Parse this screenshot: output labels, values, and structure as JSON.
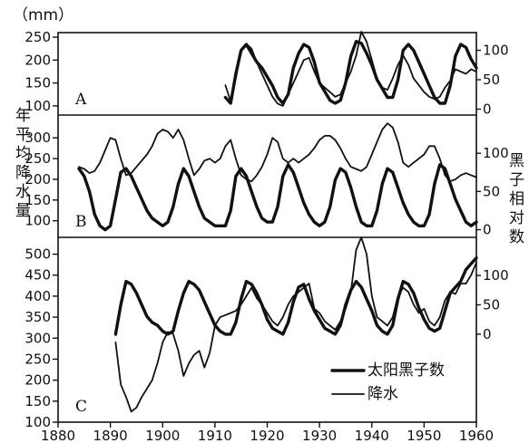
{
  "unit_label": "（mm）",
  "left_axis_title": [
    "年",
    "平",
    "均",
    "降",
    "水",
    "量"
  ],
  "right_axis_title": [
    "黑",
    "子",
    "相",
    "对",
    "数"
  ],
  "legend": {
    "sunspot": "太阳黑子数",
    "precip": "降水"
  },
  "chart_data": [
    {
      "panel": "A",
      "type": "line",
      "xlim": [
        1880,
        1960
      ],
      "ylim_left": [
        80,
        260
      ],
      "ylim_right": [
        -10,
        130
      ],
      "left_ticks": [
        100,
        150,
        200,
        250
      ],
      "right_ticks": [
        0,
        50,
        100
      ],
      "series": [
        {
          "role": "precip",
          "axis": "left",
          "x": [
            1912,
            1913,
            1914,
            1915,
            1916,
            1917,
            1918,
            1919,
            1920,
            1921,
            1922,
            1923,
            1924,
            1925,
            1926,
            1927,
            1928,
            1929,
            1930,
            1931,
            1932,
            1933,
            1934,
            1935,
            1936,
            1937,
            1938,
            1939,
            1940,
            1941,
            1942,
            1943,
            1944,
            1945,
            1946,
            1947,
            1948,
            1949,
            1950,
            1951,
            1952,
            1953,
            1954,
            1955,
            1956,
            1957,
            1958,
            1959,
            1960
          ],
          "y": [
            145,
            110,
            160,
            220,
            235,
            225,
            195,
            170,
            145,
            120,
            105,
            100,
            125,
            150,
            175,
            200,
            205,
            175,
            150,
            140,
            130,
            120,
            125,
            150,
            175,
            210,
            262,
            240,
            200,
            160,
            140,
            135,
            160,
            190,
            210,
            190,
            160,
            145,
            130,
            120,
            115,
            120,
            140,
            155,
            180,
            175,
            170,
            180,
            175
          ]
        },
        {
          "role": "sunspot",
          "axis": "right",
          "x": [
            1912,
            1913,
            1914,
            1915,
            1916,
            1917,
            1918,
            1919,
            1920,
            1921,
            1922,
            1923,
            1924,
            1925,
            1926,
            1927,
            1928,
            1929,
            1930,
            1931,
            1932,
            1933,
            1934,
            1935,
            1936,
            1937,
            1938,
            1939,
            1940,
            1941,
            1942,
            1943,
            1944,
            1945,
            1946,
            1947,
            1948,
            1949,
            1950,
            1951,
            1952,
            1953,
            1954,
            1955,
            1956,
            1957,
            1958,
            1959,
            1960
          ],
          "y": [
            20,
            10,
            60,
            100,
            110,
            95,
            80,
            70,
            55,
            40,
            20,
            10,
            25,
            70,
            95,
            110,
            105,
            80,
            45,
            30,
            15,
            10,
            15,
            45,
            90,
            115,
            112,
            95,
            75,
            50,
            35,
            20,
            20,
            50,
            100,
            110,
            100,
            80,
            60,
            40,
            20,
            10,
            10,
            40,
            90,
            110,
            105,
            85,
            70
          ]
        }
      ]
    },
    {
      "panel": "B",
      "type": "line",
      "xlim": [
        1880,
        1960
      ],
      "ylim_left": [
        60,
        355
      ],
      "ylim_right": [
        -10,
        150
      ],
      "left_ticks": [
        100,
        150,
        200,
        250,
        300
      ],
      "right_ticks": [
        0,
        50,
        100
      ],
      "series": [
        {
          "role": "precip",
          "axis": "left",
          "x": [
            1884,
            1885,
            1886,
            1887,
            1888,
            1889,
            1890,
            1891,
            1892,
            1893,
            1894,
            1895,
            1896,
            1897,
            1898,
            1899,
            1900,
            1901,
            1902,
            1903,
            1904,
            1905,
            1906,
            1907,
            1908,
            1909,
            1910,
            1911,
            1912,
            1913,
            1914,
            1915,
            1916,
            1917,
            1918,
            1919,
            1920,
            1921,
            1922,
            1923,
            1924,
            1925,
            1926,
            1927,
            1928,
            1929,
            1930,
            1931,
            1932,
            1933,
            1934,
            1935,
            1936,
            1937,
            1938,
            1939,
            1940,
            1941,
            1942,
            1943,
            1944,
            1945,
            1946,
            1947,
            1948,
            1949,
            1950,
            1951,
            1952,
            1953,
            1954,
            1955,
            1956,
            1957,
            1958,
            1959,
            1960
          ],
          "y": [
            230,
            225,
            215,
            220,
            240,
            270,
            300,
            295,
            250,
            210,
            215,
            230,
            245,
            260,
            280,
            310,
            320,
            315,
            300,
            320,
            295,
            250,
            210,
            225,
            245,
            250,
            240,
            250,
            280,
            295,
            250,
            210,
            200,
            195,
            210,
            230,
            260,
            300,
            290,
            250,
            240,
            250,
            240,
            250,
            260,
            275,
            295,
            305,
            305,
            295,
            275,
            250,
            230,
            225,
            220,
            230,
            260,
            290,
            320,
            335,
            325,
            290,
            240,
            230,
            240,
            250,
            260,
            280,
            280,
            250,
            210,
            195,
            200,
            210,
            215,
            210,
            205
          ]
        },
        {
          "role": "sunspot",
          "axis": "right",
          "x": [
            1884,
            1885,
            1886,
            1887,
            1888,
            1889,
            1890,
            1891,
            1892,
            1893,
            1894,
            1895,
            1896,
            1897,
            1898,
            1899,
            1900,
            1901,
            1902,
            1903,
            1904,
            1905,
            1906,
            1907,
            1908,
            1909,
            1910,
            1911,
            1912,
            1913,
            1914,
            1915,
            1916,
            1917,
            1918,
            1919,
            1920,
            1921,
            1922,
            1923,
            1924,
            1925,
            1926,
            1927,
            1928,
            1929,
            1930,
            1931,
            1932,
            1933,
            1934,
            1935,
            1936,
            1937,
            1938,
            1939,
            1940,
            1941,
            1942,
            1943,
            1944,
            1945,
            1946,
            1947,
            1948,
            1949,
            1950,
            1951,
            1952,
            1953,
            1954,
            1955,
            1956,
            1957,
            1958,
            1959,
            1960
          ],
          "y": [
            80,
            70,
            50,
            20,
            5,
            0,
            5,
            40,
            75,
            80,
            70,
            55,
            40,
            25,
            15,
            10,
            5,
            10,
            30,
            60,
            80,
            70,
            50,
            30,
            15,
            10,
            5,
            5,
            5,
            25,
            70,
            80,
            70,
            50,
            30,
            15,
            10,
            10,
            30,
            70,
            85,
            75,
            55,
            35,
            20,
            10,
            5,
            10,
            30,
            65,
            80,
            75,
            55,
            30,
            10,
            5,
            5,
            25,
            60,
            80,
            75,
            55,
            35,
            20,
            10,
            5,
            5,
            20,
            60,
            85,
            80,
            60,
            40,
            25,
            10,
            5,
            10
          ]
        }
      ]
    },
    {
      "panel": "C",
      "type": "line",
      "xlim": [
        1880,
        1960
      ],
      "ylim_left": [
        100,
        540
      ],
      "ylim_right": [
        -150,
        165
      ],
      "left_ticks": [
        100,
        150,
        200,
        250,
        300,
        350,
        400,
        450,
        500
      ],
      "right_ticks": [
        0,
        50,
        100
      ],
      "series": [
        {
          "role": "precip",
          "axis": "left",
          "x": [
            1891,
            1892,
            1893,
            1894,
            1895,
            1896,
            1897,
            1898,
            1899,
            1900,
            1901,
            1902,
            1903,
            1904,
            1905,
            1906,
            1907,
            1908,
            1909,
            1910,
            1911,
            1912,
            1913,
            1914,
            1915,
            1916,
            1917,
            1918,
            1919,
            1920,
            1921,
            1922,
            1923,
            1924,
            1925,
            1926,
            1927,
            1928,
            1929,
            1930,
            1931,
            1932,
            1933,
            1934,
            1935,
            1936,
            1937,
            1938,
            1939,
            1940,
            1941,
            1942,
            1943,
            1944,
            1945,
            1946,
            1947,
            1948,
            1949,
            1950,
            1951,
            1952,
            1953,
            1954,
            1955,
            1956,
            1957,
            1958,
            1959,
            1960
          ],
          "y": [
            290,
            190,
            160,
            125,
            135,
            160,
            180,
            200,
            240,
            290,
            315,
            310,
            270,
            210,
            240,
            260,
            270,
            230,
            265,
            330,
            350,
            355,
            360,
            365,
            380,
            400,
            420,
            395,
            380,
            360,
            340,
            330,
            350,
            380,
            400,
            410,
            420,
            430,
            370,
            360,
            340,
            330,
            320,
            340,
            370,
            410,
            510,
            540,
            500,
            400,
            350,
            340,
            330,
            350,
            400,
            420,
            410,
            380,
            360,
            370,
            340,
            330,
            350,
            390,
            410,
            405,
            430,
            430,
            450,
            480
          ]
        },
        {
          "role": "sunspot",
          "axis": "right",
          "x": [
            1891,
            1892,
            1893,
            1894,
            1895,
            1896,
            1897,
            1898,
            1899,
            1900,
            1901,
            1902,
            1903,
            1904,
            1905,
            1906,
            1907,
            1908,
            1909,
            1910,
            1911,
            1912,
            1913,
            1914,
            1915,
            1916,
            1917,
            1918,
            1919,
            1920,
            1921,
            1922,
            1923,
            1924,
            1925,
            1926,
            1927,
            1928,
            1929,
            1930,
            1931,
            1932,
            1933,
            1934,
            1935,
            1936,
            1937,
            1938,
            1939,
            1940,
            1941,
            1942,
            1943,
            1944,
            1945,
            1946,
            1947,
            1948,
            1949,
            1950,
            1951,
            1952,
            1953,
            1954,
            1955,
            1956,
            1957,
            1958,
            1959,
            1960
          ],
          "y": [
            0,
            50,
            90,
            85,
            70,
            50,
            30,
            20,
            15,
            5,
            0,
            5,
            40,
            70,
            90,
            85,
            75,
            55,
            35,
            15,
            5,
            0,
            0,
            20,
            60,
            90,
            85,
            70,
            50,
            25,
            10,
            5,
            0,
            20,
            55,
            80,
            85,
            60,
            40,
            25,
            10,
            5,
            0,
            15,
            50,
            75,
            90,
            80,
            60,
            40,
            15,
            5,
            0,
            15,
            60,
            90,
            85,
            70,
            45,
            25,
            10,
            5,
            10,
            40,
            70,
            80,
            90,
            110,
            120,
            130
          ]
        }
      ]
    }
  ],
  "x_ticks": [
    1880,
    1890,
    1900,
    1910,
    1920,
    1930,
    1940,
    1950,
    1960
  ]
}
